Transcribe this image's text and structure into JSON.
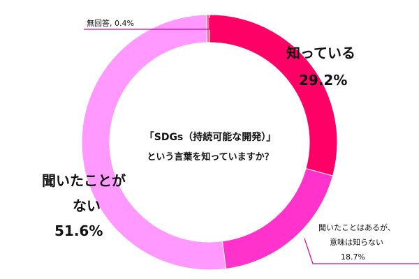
{
  "chart_data": {
    "type": "pie",
    "style": "donut",
    "question": [
      "「SDGs（持続可能な開発）」",
      "という言葉を知っていますか？"
    ],
    "slices": [
      {
        "name": "知っている",
        "value": 29.2,
        "label": "29.2%",
        "color": "#ff0066"
      },
      {
        "name": "聞いたことはあるが、意味は知らない",
        "value": 18.7,
        "label": "18.7%",
        "color": "#ff33cc"
      },
      {
        "name": "聞いたことがない",
        "value": 51.6,
        "label": "51.6%",
        "color": "#ff99ff"
      },
      {
        "name": "無回答",
        "value": 0.4,
        "label": "0.4%",
        "color": "#ff6699"
      }
    ],
    "labels": {
      "know": {
        "line1": "知っている",
        "line2": "29.2%"
      },
      "heard": {
        "line1": "聞いたことはあるが、",
        "line2": "意味は知らない",
        "line3": "18.7%"
      },
      "never": {
        "line1": "聞いたことが",
        "line2": "ない",
        "line3": "51.6%"
      },
      "noanswer": {
        "text": "無回答, 0.4%"
      }
    }
  }
}
